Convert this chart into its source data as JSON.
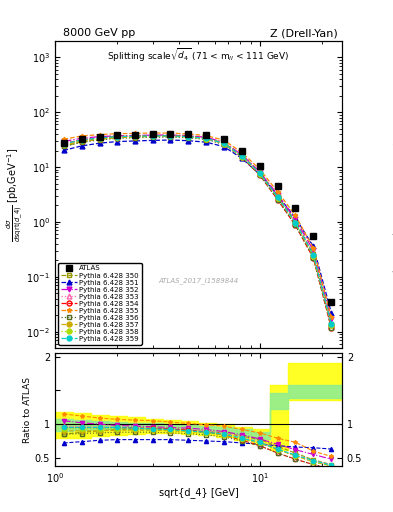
{
  "x_data": [
    1.1,
    1.35,
    1.65,
    2.0,
    2.45,
    3.0,
    3.65,
    4.45,
    5.45,
    6.65,
    8.15,
    9.95,
    12.15,
    14.85,
    18.15,
    22.2
  ],
  "x_edges": [
    1.0,
    1.22,
    1.5,
    1.83,
    2.24,
    2.74,
    3.35,
    4.09,
    5.0,
    6.12,
    7.48,
    9.15,
    11.18,
    13.67,
    16.7,
    20.4,
    25.0
  ],
  "atlas_y": [
    28.0,
    33.0,
    36.0,
    38.0,
    39.0,
    40.0,
    40.5,
    40.0,
    38.0,
    32.0,
    20.0,
    10.5,
    4.5,
    1.8,
    0.55,
    0.035
  ],
  "series": [
    {
      "label": "Pythia 6.428 350",
      "color": "#999900",
      "linestyle": "--",
      "marker": "s",
      "markerfacecolor": "none",
      "ratio": [
        0.85,
        0.88,
        0.9,
        0.92,
        0.93,
        0.93,
        0.92,
        0.91,
        0.89,
        0.87,
        0.82,
        0.77,
        0.67,
        0.57,
        0.47,
        0.4
      ]
    },
    {
      "label": "Pythia 6.428 351",
      "color": "#0000CC",
      "linestyle": "--",
      "marker": "^",
      "markerfacecolor": "#0000CC",
      "ratio": [
        0.72,
        0.74,
        0.76,
        0.77,
        0.77,
        0.77,
        0.77,
        0.76,
        0.75,
        0.74,
        0.72,
        0.7,
        0.68,
        0.66,
        0.65,
        0.63
      ]
    },
    {
      "label": "Pythia 6.428 352",
      "color": "#CC00CC",
      "linestyle": "-.",
      "marker": "v",
      "markerfacecolor": "#CC00CC",
      "ratio": [
        1.05,
        1.02,
        1.0,
        0.98,
        0.97,
        0.96,
        0.95,
        0.94,
        0.92,
        0.89,
        0.84,
        0.78,
        0.7,
        0.62,
        0.55,
        0.48
      ]
    },
    {
      "label": "Pythia 6.428 353",
      "color": "#FF66AA",
      "linestyle": ":",
      "marker": "^",
      "markerfacecolor": "none",
      "ratio": [
        0.97,
        0.96,
        0.95,
        0.95,
        0.94,
        0.94,
        0.93,
        0.92,
        0.9,
        0.87,
        0.81,
        0.74,
        0.63,
        0.54,
        0.46,
        0.4
      ]
    },
    {
      "label": "Pythia 6.428 354",
      "color": "#FF0000",
      "linestyle": "--",
      "marker": "o",
      "markerfacecolor": "none",
      "ratio": [
        0.95,
        0.95,
        0.95,
        0.95,
        0.94,
        0.94,
        0.93,
        0.91,
        0.88,
        0.84,
        0.76,
        0.68,
        0.57,
        0.48,
        0.4,
        0.33
      ]
    },
    {
      "label": "Pythia 6.428 355",
      "color": "#FF8800",
      "linestyle": "--",
      "marker": "*",
      "markerfacecolor": "#FF8800",
      "ratio": [
        1.15,
        1.12,
        1.09,
        1.07,
        1.06,
        1.05,
        1.03,
        1.01,
        0.99,
        0.97,
        0.92,
        0.87,
        0.79,
        0.73,
        0.6,
        0.52
      ]
    },
    {
      "label": "Pythia 6.428 356",
      "color": "#556B22",
      "linestyle": ":",
      "marker": "s",
      "markerfacecolor": "none",
      "ratio": [
        0.85,
        0.86,
        0.87,
        0.88,
        0.88,
        0.88,
        0.87,
        0.86,
        0.84,
        0.81,
        0.75,
        0.68,
        0.57,
        0.48,
        0.4,
        0.34
      ]
    },
    {
      "label": "Pythia 6.428 357",
      "color": "#CCAA00",
      "linestyle": "--",
      "marker": "o",
      "markerfacecolor": "#CCAA00",
      "ratio": [
        0.9,
        0.9,
        0.9,
        0.91,
        0.91,
        0.91,
        0.9,
        0.89,
        0.87,
        0.84,
        0.78,
        0.72,
        0.62,
        0.53,
        0.44,
        0.38
      ]
    },
    {
      "label": "Pythia 6.428 358",
      "color": "#AADD00",
      "linestyle": ":",
      "marker": "o",
      "markerfacecolor": "#AADD00",
      "ratio": [
        0.93,
        0.93,
        0.93,
        0.93,
        0.93,
        0.92,
        0.91,
        0.89,
        0.87,
        0.84,
        0.78,
        0.72,
        0.62,
        0.53,
        0.44,
        0.38
      ]
    },
    {
      "label": "Pythia 6.428 359",
      "color": "#00CCCC",
      "linestyle": "--",
      "marker": "o",
      "markerfacecolor": "#00CCCC",
      "ratio": [
        0.95,
        0.95,
        0.95,
        0.95,
        0.94,
        0.93,
        0.92,
        0.9,
        0.88,
        0.85,
        0.79,
        0.73,
        0.63,
        0.54,
        0.46,
        0.39
      ]
    }
  ],
  "band_yellow_low": [
    0.8,
    0.8,
    0.82,
    0.84,
    0.86,
    0.87,
    0.87,
    0.86,
    0.84,
    0.81,
    0.76,
    0.7,
    0.62,
    1.35,
    1.35,
    1.35
  ],
  "band_yellow_high": [
    1.18,
    1.16,
    1.14,
    1.12,
    1.1,
    1.08,
    1.06,
    1.04,
    1.02,
    1.0,
    0.96,
    0.92,
    1.58,
    1.9,
    1.9,
    1.9
  ],
  "band_green_low": [
    0.9,
    0.91,
    0.92,
    0.93,
    0.93,
    0.93,
    0.93,
    0.91,
    0.89,
    0.87,
    0.83,
    0.78,
    1.22,
    1.38,
    1.38,
    1.38
  ],
  "band_green_high": [
    1.08,
    1.06,
    1.04,
    1.03,
    1.02,
    1.01,
    1.0,
    0.99,
    0.97,
    0.95,
    0.92,
    0.88,
    1.46,
    1.58,
    1.58,
    1.58
  ]
}
